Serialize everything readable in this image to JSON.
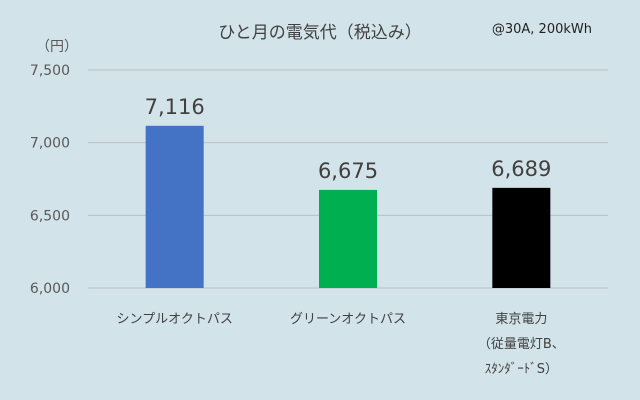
{
  "chart_title": "ひと月の電気代（税込み）",
  "annotation": "@30A, 200kWh",
  "unit_label": "（円）",
  "colors": {
    "background": "#d3e3ea",
    "grid": "#bfbfbf",
    "text": "#404040"
  },
  "chart_data": {
    "type": "bar",
    "title": "ひと月の電気代（税込み）",
    "xlabel": "",
    "ylabel": "（円）",
    "ylim": [
      6000,
      7500
    ],
    "yticks": [
      6000,
      6500,
      7000,
      7500
    ],
    "ytick_labels": [
      "6,000",
      "6,500",
      "7,000",
      "7,500"
    ],
    "grid": true,
    "categories": [
      [
        "シンプルオクトパス"
      ],
      [
        "グリーンオクトパス"
      ],
      [
        "東京電力",
        "（従量電灯B、",
        "ｽﾀﾝﾀﾞｰﾄﾞS）"
      ]
    ],
    "values": [
      7116,
      6675,
      6689
    ],
    "value_labels": [
      "7,116",
      "6,675",
      "6,689"
    ],
    "bar_colors": [
      "#4472c4",
      "#00b050",
      "#000000"
    ]
  }
}
